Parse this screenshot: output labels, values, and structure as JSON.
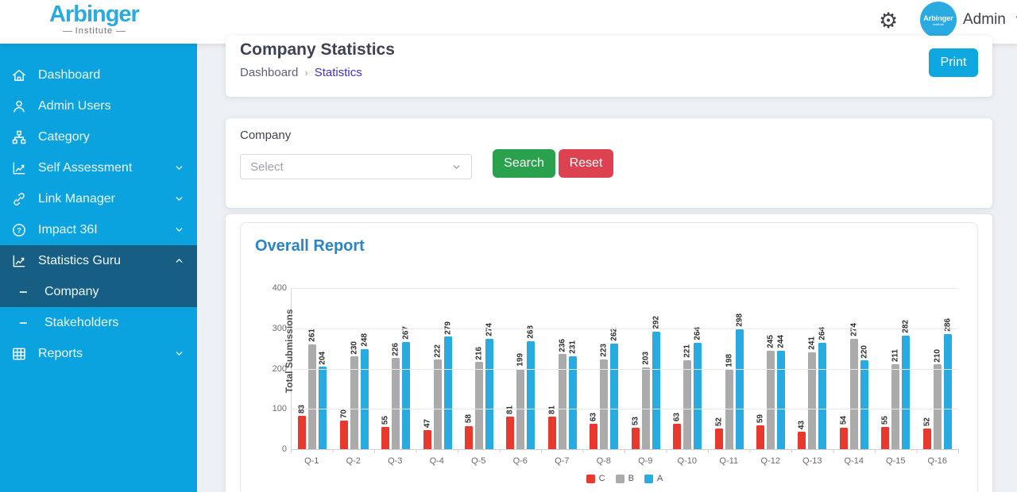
{
  "header": {
    "logo_title": "Arbinger",
    "logo_subtitle": "Institute",
    "avatar_line1": "Arbinger",
    "avatar_line2": "Institute",
    "user_name": "Admin"
  },
  "sidebar": {
    "items": [
      {
        "label": "Dashboard",
        "icon": "home",
        "chevron": null,
        "active": false,
        "child": false
      },
      {
        "label": "Admin Users",
        "icon": "user",
        "chevron": null,
        "active": false,
        "child": false
      },
      {
        "label": "Category",
        "icon": "sitemap",
        "chevron": null,
        "active": false,
        "child": false
      },
      {
        "label": "Self Assessment",
        "icon": "chart",
        "chevron": "down",
        "active": false,
        "child": false
      },
      {
        "label": "Link Manager",
        "icon": "link",
        "chevron": "down",
        "active": false,
        "child": false
      },
      {
        "label": "Impact 36I",
        "icon": "question",
        "chevron": "down",
        "active": false,
        "child": false
      },
      {
        "label": "Statistics Guru",
        "icon": "chart",
        "chevron": "up",
        "active": true,
        "child": false
      },
      {
        "label": "Company",
        "icon": "dash",
        "chevron": null,
        "active": true,
        "child": true
      },
      {
        "label": "Stakeholders",
        "icon": "dash",
        "chevron": null,
        "active": false,
        "child": true
      },
      {
        "label": "Reports",
        "icon": "table",
        "chevron": "down",
        "active": false,
        "child": false
      }
    ]
  },
  "page": {
    "title": "Company Statistics",
    "breadcrumb": [
      "Dashboard",
      "Statistics"
    ],
    "print_label": "Print"
  },
  "filter": {
    "label": "Company",
    "select_placeholder": "Select",
    "search_label": "Search",
    "reset_label": "Reset"
  },
  "report": {
    "title": "Overall Report"
  },
  "chart_data": {
    "type": "bar",
    "title": "Overall Report",
    "categories": [
      "Q-1",
      "Q-2",
      "Q-3",
      "Q-4",
      "Q-5",
      "Q-6",
      "Q-7",
      "Q-8",
      "Q-9",
      "Q-10",
      "Q-11",
      "Q-12",
      "Q-13",
      "Q-14",
      "Q-15",
      "Q-16"
    ],
    "series": [
      {
        "name": "C",
        "color": "#e8392e",
        "values": [
          83,
          70,
          55,
          47,
          58,
          81,
          81,
          63,
          53,
          63,
          52,
          59,
          43,
          54,
          55,
          52
        ]
      },
      {
        "name": "B",
        "color": "#ababab",
        "values": [
          261,
          230,
          226,
          222,
          216,
          199,
          236,
          223,
          203,
          221,
          198,
          245,
          241,
          274,
          211,
          210
        ]
      },
      {
        "name": "A",
        "color": "#29abe2",
        "values": [
          204,
          248,
          267,
          279,
          274,
          268,
          231,
          262,
          292,
          264,
          298,
          244,
          264,
          220,
          282,
          286
        ]
      }
    ],
    "xlabel": "",
    "ylabel": "Total Submissions",
    "ylim": [
      0,
      400
    ],
    "yticks": [
      0,
      100,
      200,
      300,
      400
    ],
    "grid": true,
    "legend_position": "bottom",
    "bar_value_labels": "rotated-90"
  },
  "colors": {
    "sidebar": "#0aa3e0",
    "sidebar_active": "#175e85",
    "brand_blue": "#29abe2",
    "print_blue": "#0fa7e0",
    "search_green": "#2aa14c",
    "reset_red": "#dd4250",
    "breadcrumb_active": "#4130d0",
    "report_title": "#2b85c4"
  }
}
